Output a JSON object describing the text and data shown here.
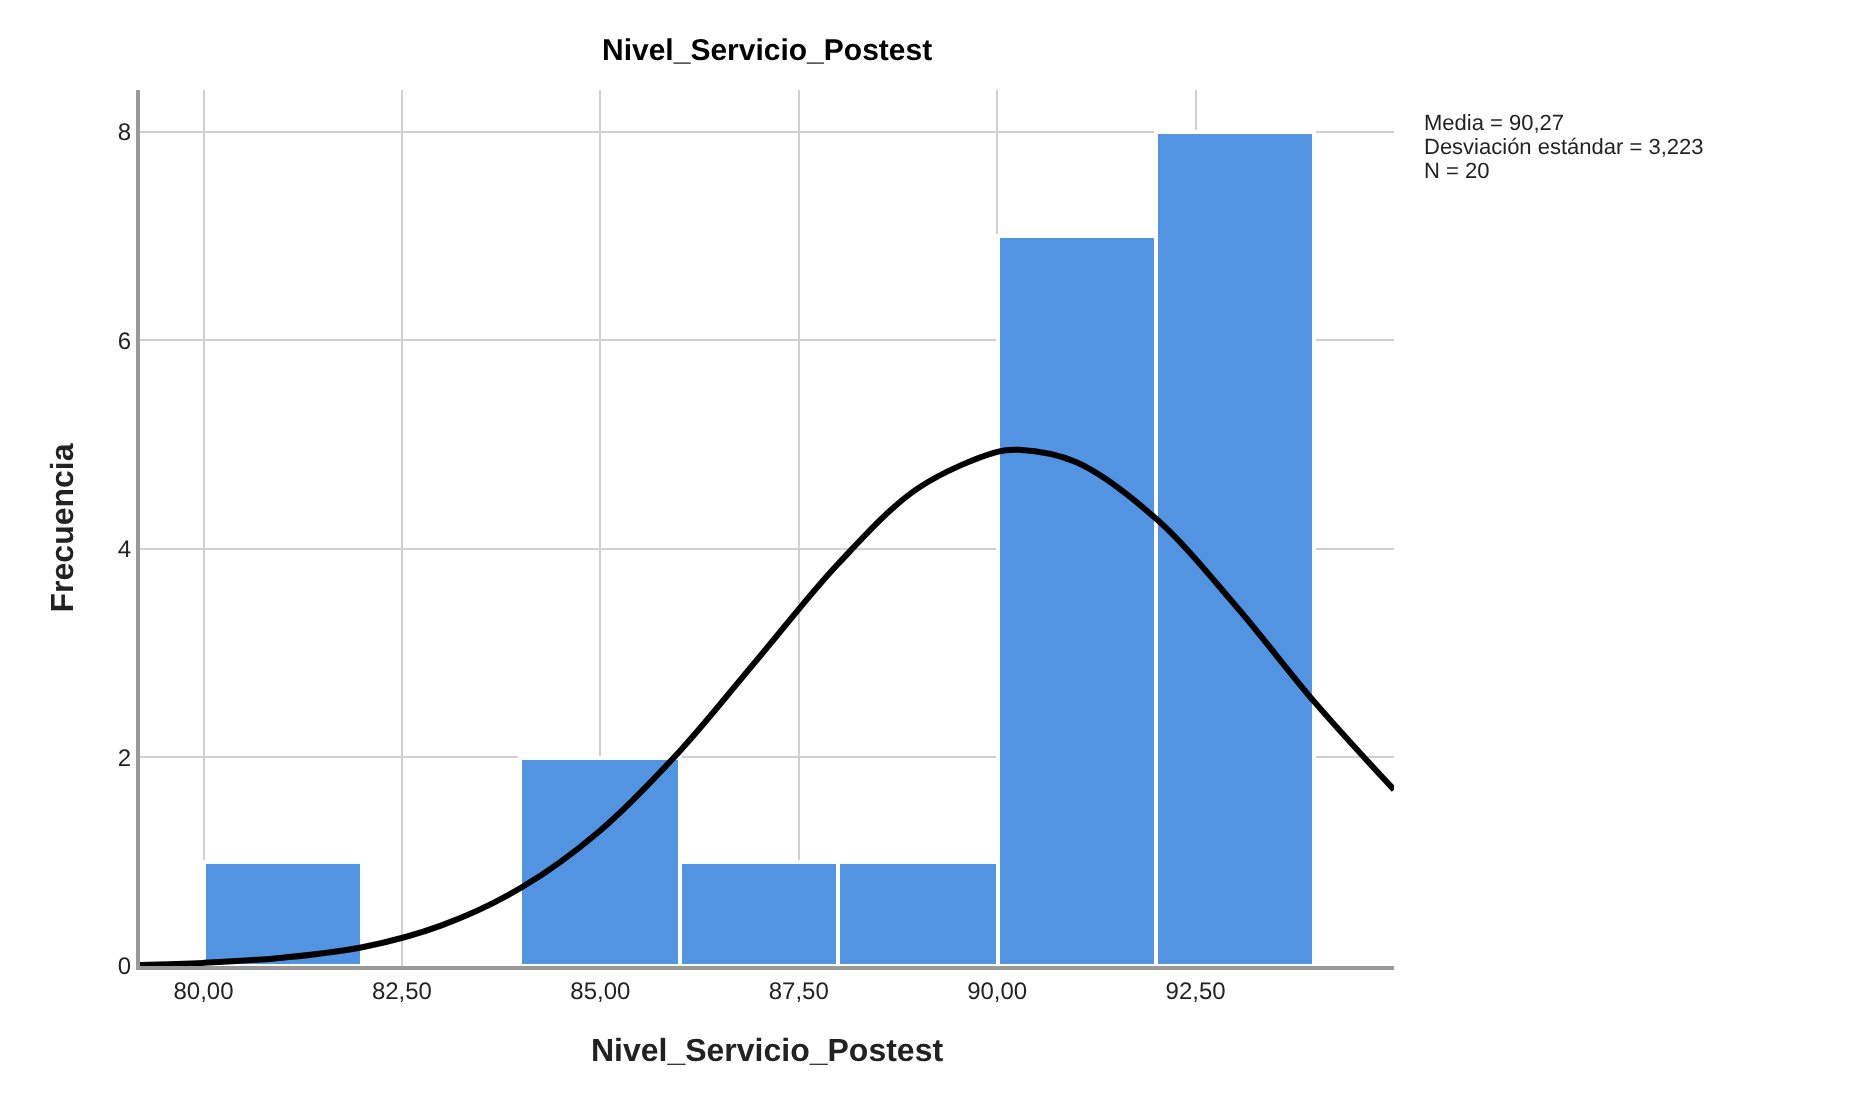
{
  "chart_data": {
    "type": "histogram",
    "title": "Nivel_Servicio_Postest",
    "xlabel": "Nivel_Servicio_Postest",
    "ylabel": "Frecuencia",
    "bins": [
      80,
      82,
      84,
      86,
      88,
      90,
      92,
      94
    ],
    "values": [
      1,
      0,
      2,
      1,
      1,
      7,
      8
    ],
    "color": "#5294e2",
    "series": [
      {
        "type": "line",
        "color": "#000000",
        "x": [
          79.2,
          80,
          81,
          82,
          83,
          84,
          85,
          86,
          87,
          88,
          89,
          90,
          90.27,
          91,
          92,
          93,
          94,
          95
        ],
        "values": [
          0.01,
          0.03,
          0.08,
          0.18,
          0.39,
          0.75,
          1.3,
          2.06,
          2.96,
          3.86,
          4.58,
          4.93,
          4.95,
          4.83,
          4.29,
          3.46,
          2.53,
          1.69
        ]
      }
    ],
    "xlim": [
      79.2,
      95.0
    ],
    "ylim": [
      0,
      8.4
    ],
    "xticks": [
      {
        "value": 80,
        "label": "80,00"
      },
      {
        "value": 82.5,
        "label": "82,50"
      },
      {
        "value": 85,
        "label": "85,00"
      },
      {
        "value": 87.5,
        "label": "87,50"
      },
      {
        "value": 90,
        "label": "90,00"
      },
      {
        "value": 92.5,
        "label": "92,50"
      }
    ],
    "yticks": [
      0,
      2,
      4,
      6,
      8
    ],
    "grid": true,
    "annotations": [
      "Media = 90,27",
      "Desviación estándar = 3,223",
      "N = 20"
    ]
  }
}
